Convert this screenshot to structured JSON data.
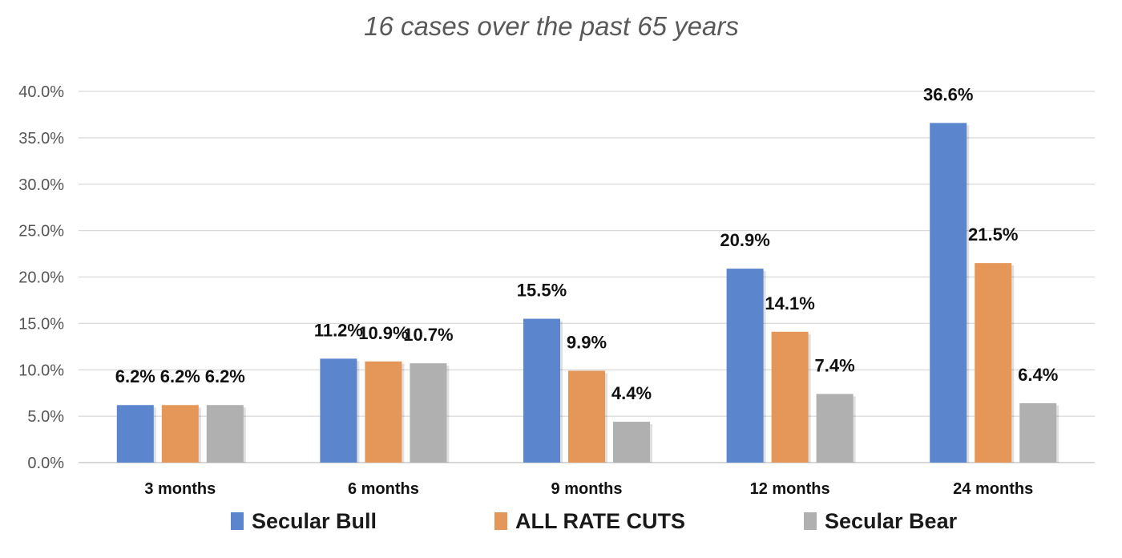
{
  "chart_data": {
    "type": "bar",
    "title": "16 cases over the past 65 years",
    "xlabel": "",
    "ylabel": "",
    "ylim": [
      0,
      40
    ],
    "y_ticks": [
      "0.0%",
      "5.0%",
      "10.0%",
      "15.0%",
      "20.0%",
      "25.0%",
      "30.0%",
      "35.0%",
      "40.0%"
    ],
    "categories": [
      "3 months",
      "6 months",
      "9 months",
      "12 months",
      "24 months"
    ],
    "series": [
      {
        "name": "Secular Bull",
        "color": "#5B86CE",
        "values": [
          6.2,
          11.2,
          15.5,
          20.9,
          36.6
        ],
        "labels": [
          "6.2%",
          "11.2%",
          "15.5%",
          "20.9%",
          "36.6%"
        ]
      },
      {
        "name": "ALL RATE CUTS",
        "color": "#E5975A",
        "values": [
          6.2,
          10.9,
          9.9,
          14.1,
          21.5
        ],
        "labels": [
          "6.2%",
          "10.9%",
          "9.9%",
          "14.1%",
          "21.5%"
        ]
      },
      {
        "name": "Secular Bear",
        "color": "#B0B0B0",
        "values": [
          6.2,
          10.7,
          4.4,
          7.4,
          6.4
        ],
        "labels": [
          "6.2%",
          "10.7%",
          "4.4%",
          "7.4%",
          "6.4%"
        ]
      }
    ],
    "grid": true,
    "legend_position": "bottom"
  }
}
